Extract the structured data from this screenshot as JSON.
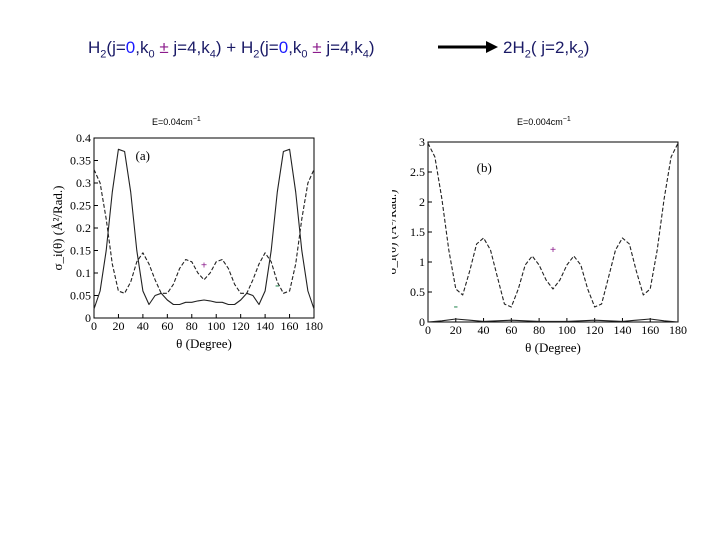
{
  "equation": {
    "left_parts": [
      "H",
      "2",
      "(j=",
      "0",
      ",k",
      "0",
      " ± ",
      "j=4,k",
      "4",
      ") + H",
      "2",
      "(j=",
      "0",
      ",k",
      "0",
      " ± ",
      "j=4,k",
      "4",
      ")"
    ],
    "right_parts": [
      "2H",
      "2",
      "( j=2,k",
      "2",
      ")"
    ]
  },
  "energy_labels": {
    "left": {
      "text": "E=0.04cm",
      "exp": "−1"
    },
    "right": {
      "text": "E=0.004cm",
      "exp": "−1"
    }
  },
  "colors": {
    "equation_text": "#1a1a66",
    "j_blue": "#1a1aff",
    "pm_purple": "#8b1a8b",
    "plus_marker": "#8b1a8b",
    "minus_marker": "#2e8b57",
    "curves": "#222222"
  },
  "chart_data": [
    {
      "type": "line",
      "panel_label": "(a)",
      "xlabel": "θ (Degree)",
      "ylabel": "σ_i(θ) (Å²/Rad.)",
      "xlim": [
        0,
        180
      ],
      "ylim": [
        0,
        0.4
      ],
      "xticks": [
        0,
        20,
        40,
        60,
        80,
        100,
        120,
        140,
        160,
        180
      ],
      "yticks": [
        0,
        0.05,
        0.1,
        0.15,
        0.2,
        0.25,
        0.3,
        0.35,
        0.4
      ],
      "ytick_labels": [
        "0",
        "0.05",
        "0.1",
        "0.15",
        "0.2",
        "0.25",
        "0.3",
        "0.35",
        "0.4"
      ],
      "markers": [
        {
          "text": "+",
          "x": 90,
          "y": 0.11,
          "kind": "plus"
        },
        {
          "text": "-",
          "x": 150,
          "y": 0.065,
          "kind": "minus"
        }
      ],
      "series": [
        {
          "style": "solid",
          "x": [
            0,
            5,
            10,
            15,
            20,
            25,
            30,
            35,
            40,
            45,
            50,
            55,
            60,
            65,
            70,
            75,
            80,
            85,
            90,
            95,
            100,
            105,
            110,
            115,
            120,
            125,
            130,
            135,
            140,
            145,
            150,
            155,
            160,
            165,
            170,
            175,
            180
          ],
          "y": [
            0.02,
            0.06,
            0.15,
            0.28,
            0.375,
            0.37,
            0.28,
            0.15,
            0.06,
            0.03,
            0.05,
            0.055,
            0.04,
            0.03,
            0.03,
            0.035,
            0.035,
            0.038,
            0.04,
            0.038,
            0.035,
            0.035,
            0.03,
            0.03,
            0.04,
            0.055,
            0.05,
            0.03,
            0.06,
            0.15,
            0.28,
            0.37,
            0.375,
            0.28,
            0.15,
            0.06,
            0.02
          ]
        },
        {
          "style": "dashed",
          "x": [
            0,
            5,
            10,
            15,
            20,
            25,
            30,
            35,
            40,
            45,
            50,
            55,
            60,
            65,
            70,
            75,
            80,
            85,
            90,
            95,
            100,
            105,
            110,
            115,
            120,
            125,
            130,
            135,
            140,
            145,
            150,
            155,
            160,
            165,
            170,
            175,
            180
          ],
          "y": [
            0.33,
            0.3,
            0.22,
            0.12,
            0.06,
            0.055,
            0.08,
            0.125,
            0.145,
            0.12,
            0.085,
            0.055,
            0.055,
            0.075,
            0.11,
            0.13,
            0.125,
            0.1,
            0.085,
            0.1,
            0.125,
            0.13,
            0.11,
            0.075,
            0.055,
            0.055,
            0.085,
            0.12,
            0.145,
            0.125,
            0.08,
            0.055,
            0.06,
            0.12,
            0.22,
            0.3,
            0.33
          ]
        }
      ]
    },
    {
      "type": "line",
      "panel_label": "(b)",
      "xlabel": "θ (Degree)",
      "ylabel": "σ_i(θ) (Å²/Rad.)",
      "xlim": [
        0,
        180
      ],
      "ylim": [
        0,
        3
      ],
      "xticks": [
        0,
        20,
        40,
        60,
        80,
        100,
        120,
        140,
        160,
        180
      ],
      "yticks": [
        0,
        0.5,
        1,
        1.5,
        2,
        2.5,
        3
      ],
      "ytick_labels": [
        "0",
        "0.5",
        "1",
        "1.5",
        "2",
        "2.5",
        "3"
      ],
      "markers": [
        {
          "text": "+",
          "x": 90,
          "y": 1.15,
          "kind": "plus"
        },
        {
          "text": "-",
          "x": 20,
          "y": 0.2,
          "kind": "minus"
        }
      ],
      "series": [
        {
          "style": "solid",
          "x": [
            0,
            10,
            20,
            30,
            40,
            50,
            60,
            70,
            80,
            90,
            100,
            110,
            120,
            130,
            140,
            150,
            160,
            170,
            180
          ],
          "y": [
            0.0,
            0.02,
            0.05,
            0.03,
            0.01,
            0.02,
            0.03,
            0.02,
            0.01,
            0.01,
            0.01,
            0.02,
            0.03,
            0.02,
            0.01,
            0.03,
            0.05,
            0.02,
            0.0
          ]
        },
        {
          "style": "dashed",
          "x": [
            0,
            5,
            10,
            15,
            20,
            25,
            30,
            35,
            40,
            45,
            50,
            55,
            60,
            65,
            70,
            75,
            80,
            85,
            90,
            95,
            100,
            105,
            110,
            115,
            120,
            125,
            130,
            135,
            140,
            145,
            150,
            155,
            160,
            165,
            170,
            175,
            180
          ],
          "y": [
            2.98,
            2.75,
            2.05,
            1.2,
            0.55,
            0.45,
            0.85,
            1.3,
            1.4,
            1.2,
            0.75,
            0.3,
            0.25,
            0.55,
            0.95,
            1.1,
            0.95,
            0.7,
            0.55,
            0.7,
            0.95,
            1.1,
            0.95,
            0.55,
            0.25,
            0.3,
            0.75,
            1.2,
            1.4,
            1.3,
            0.85,
            0.45,
            0.55,
            1.2,
            2.05,
            2.75,
            2.98
          ]
        }
      ]
    }
  ]
}
